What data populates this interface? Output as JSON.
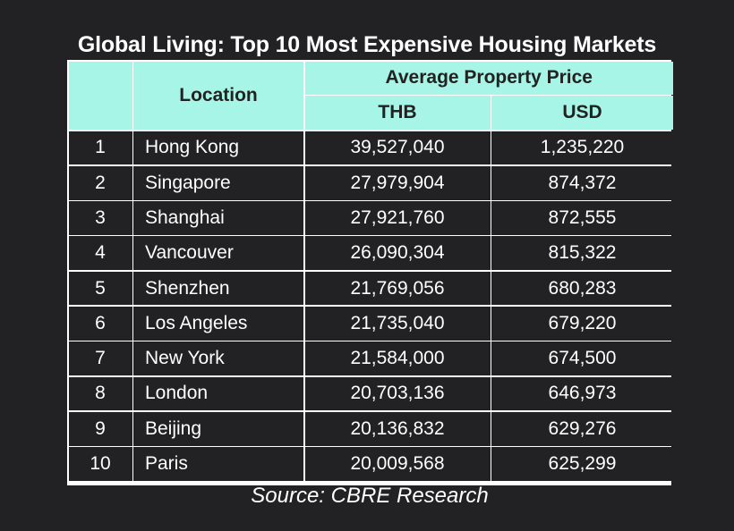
{
  "chart_data": {
    "type": "table",
    "title": "Global Living: Top 10 Most Expensive Housing Markets",
    "header": {
      "rank": "",
      "location": "Location",
      "group": "Average Property Price",
      "thb": "THB",
      "usd": "USD"
    },
    "rows": [
      {
        "rank": "1",
        "location": "Hong Kong",
        "thb": "39,527,040",
        "usd": "1,235,220"
      },
      {
        "rank": "2",
        "location": "Singapore",
        "thb": "27,979,904",
        "usd": "874,372"
      },
      {
        "rank": "3",
        "location": "Shanghai",
        "thb": "27,921,760",
        "usd": "872,555"
      },
      {
        "rank": "4",
        "location": "Vancouver",
        "thb": "26,090,304",
        "usd": "815,322"
      },
      {
        "rank": "5",
        "location": "Shenzhen",
        "thb": "21,769,056",
        "usd": "680,283"
      },
      {
        "rank": "6",
        "location": "Los Angeles",
        "thb": "21,735,040",
        "usd": "679,220"
      },
      {
        "rank": "7",
        "location": "New York",
        "thb": "21,584,000",
        "usd": "674,500"
      },
      {
        "rank": "8",
        "location": "London",
        "thb": "20,703,136",
        "usd": "646,973"
      },
      {
        "rank": "9",
        "location": "Beijing",
        "thb": "20,136,832",
        "usd": "629,276"
      },
      {
        "rank": "10",
        "location": "Paris",
        "thb": "20,009,568",
        "usd": "625,299"
      }
    ],
    "source": "Source: CBRE Research"
  },
  "colors": {
    "background": "#222224",
    "header_fill": "#a7f5e6",
    "grid_lines": "#ffffff"
  }
}
